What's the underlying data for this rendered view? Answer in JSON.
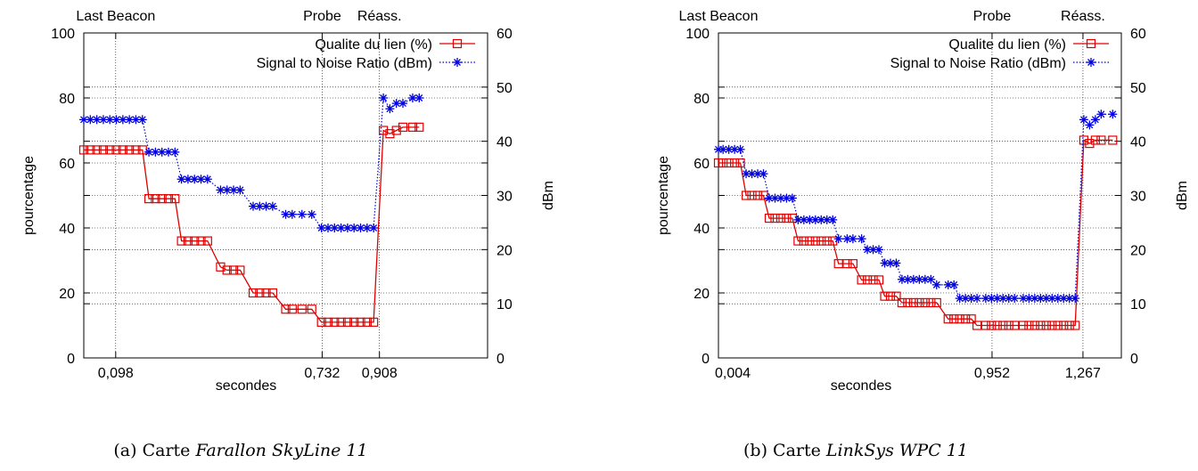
{
  "chart_data": [
    {
      "type": "line",
      "caption_prefix": "(a) Carte ",
      "caption_name": "Farallon SkyLine 11",
      "xlabel": "secondes",
      "ylabel": "pourcentage",
      "y2label": "dBm",
      "ylim": [
        0,
        100
      ],
      "y2lim": [
        0,
        60
      ],
      "xlim": [
        0,
        1.24
      ],
      "yticks": [
        "0",
        "20",
        "40",
        "60",
        "80",
        "100"
      ],
      "y2ticks": [
        "0",
        "10",
        "20",
        "30",
        "40",
        "50",
        "60"
      ],
      "xticks": [
        {
          "x": 0.098,
          "label": "0,098"
        },
        {
          "x": 0.732,
          "label": "0,732"
        },
        {
          "x": 0.908,
          "label": "0,908"
        }
      ],
      "events": [
        {
          "x": 0.098,
          "label": "Last Beacon"
        },
        {
          "x": 0.732,
          "label": "Probe"
        },
        {
          "x": 0.908,
          "label": "Réass."
        }
      ],
      "grid": true,
      "legend_position": "top-right",
      "series": [
        {
          "name": "Qualite du lien (%)",
          "axis": "left",
          "color": "#e00000",
          "marker": "square",
          "line": "solid",
          "x": [
            0.0,
            0.02,
            0.04,
            0.06,
            0.08,
            0.1,
            0.12,
            0.14,
            0.16,
            0.18,
            0.2,
            0.22,
            0.24,
            0.26,
            0.28,
            0.3,
            0.32,
            0.34,
            0.36,
            0.38,
            0.42,
            0.44,
            0.46,
            0.48,
            0.52,
            0.54,
            0.56,
            0.58,
            0.62,
            0.64,
            0.67,
            0.7,
            0.73,
            0.75,
            0.77,
            0.79,
            0.81,
            0.83,
            0.85,
            0.87,
            0.89,
            0.92,
            0.94,
            0.96,
            0.98,
            1.01,
            1.03
          ],
          "values": [
            64,
            64,
            64,
            64,
            64,
            64,
            64,
            64,
            64,
            64,
            49,
            49,
            49,
            49,
            49,
            36,
            36,
            36,
            36,
            36,
            28,
            27,
            27,
            27,
            20,
            20,
            20,
            20,
            15,
            15,
            15,
            15,
            11,
            11,
            11,
            11,
            11,
            11,
            11,
            11,
            11,
            70,
            69,
            70,
            71,
            71,
            71
          ]
        },
        {
          "name": "Signal to Noise Ratio (dBm)",
          "axis": "right",
          "color": "#0000e0",
          "marker": "star",
          "line": "dotted",
          "x": [
            0.0,
            0.02,
            0.04,
            0.06,
            0.08,
            0.1,
            0.12,
            0.14,
            0.16,
            0.18,
            0.2,
            0.22,
            0.24,
            0.26,
            0.28,
            0.3,
            0.32,
            0.34,
            0.36,
            0.38,
            0.42,
            0.44,
            0.46,
            0.48,
            0.52,
            0.54,
            0.56,
            0.58,
            0.62,
            0.64,
            0.67,
            0.7,
            0.73,
            0.75,
            0.77,
            0.79,
            0.81,
            0.83,
            0.85,
            0.87,
            0.89,
            0.92,
            0.94,
            0.96,
            0.98,
            1.01,
            1.03
          ],
          "values": [
            44,
            44,
            44,
            44,
            44,
            44,
            44,
            44,
            44,
            44,
            38,
            38,
            38,
            38,
            38,
            33,
            33,
            33,
            33,
            33,
            31,
            31,
            31,
            31,
            28,
            28,
            28,
            28,
            26.5,
            26.5,
            26.5,
            26.5,
            24,
            24,
            24,
            24,
            24,
            24,
            24,
            24,
            24,
            48,
            46,
            47,
            47,
            48,
            48
          ]
        }
      ]
    },
    {
      "type": "line",
      "caption_prefix": "(b) Carte ",
      "caption_name": "LinkSys WPC 11",
      "xlabel": "secondes",
      "ylabel": "pourcentage",
      "y2label": "dBm",
      "ylim": [
        0,
        100
      ],
      "y2lim": [
        0,
        60
      ],
      "xlim": [
        0.004,
        1.4
      ],
      "yticks": [
        "0",
        "20",
        "40",
        "60",
        "80",
        "100"
      ],
      "y2ticks": [
        "0",
        "10",
        "20",
        "30",
        "40",
        "50",
        "60"
      ],
      "xticks": [
        {
          "x": 0.004,
          "label": "0,004"
        },
        {
          "x": 0.952,
          "label": "0,952"
        },
        {
          "x": 1.267,
          "label": "1,267"
        }
      ],
      "events": [
        {
          "x": 0.004,
          "label": "Last Beacon"
        },
        {
          "x": 0.952,
          "label": "Probe"
        },
        {
          "x": 1.267,
          "label": "Réass."
        }
      ],
      "grid": true,
      "legend_position": "top-right",
      "series": [
        {
          "name": "Qualite du lien (%)",
          "axis": "left",
          "color": "#e00000",
          "marker": "square",
          "line": "solid",
          "x": [
            0.004,
            0.02,
            0.04,
            0.06,
            0.08,
            0.1,
            0.12,
            0.14,
            0.16,
            0.18,
            0.2,
            0.22,
            0.24,
            0.26,
            0.28,
            0.3,
            0.32,
            0.34,
            0.36,
            0.38,
            0.4,
            0.42,
            0.45,
            0.47,
            0.5,
            0.52,
            0.54,
            0.56,
            0.58,
            0.6,
            0.62,
            0.64,
            0.66,
            0.68,
            0.7,
            0.72,
            0.74,
            0.76,
            0.8,
            0.82,
            0.84,
            0.86,
            0.88,
            0.9,
            0.93,
            0.95,
            0.97,
            0.99,
            1.01,
            1.03,
            1.06,
            1.08,
            1.1,
            1.12,
            1.14,
            1.16,
            1.18,
            1.2,
            1.22,
            1.24,
            1.27,
            1.29,
            1.31,
            1.33,
            1.37
          ],
          "values": [
            60,
            60,
            60,
            60,
            60,
            50,
            50,
            50,
            50,
            43,
            43,
            43,
            43,
            43,
            36,
            36,
            36,
            36,
            36,
            36,
            36,
            29,
            29,
            29,
            24,
            24,
            24,
            24,
            19,
            19,
            19,
            17,
            17,
            17,
            17,
            17,
            17,
            17,
            12,
            12,
            12,
            12,
            12,
            10,
            10,
            10,
            10,
            10,
            10,
            10,
            10,
            10,
            10,
            10,
            10,
            10,
            10,
            10,
            10,
            10,
            67,
            66,
            67,
            67,
            67
          ]
        },
        {
          "name": "Signal to Noise Ratio (dBm)",
          "axis": "right",
          "color": "#0000e0",
          "marker": "star",
          "line": "dotted",
          "x": [
            0.004,
            0.02,
            0.04,
            0.06,
            0.08,
            0.1,
            0.12,
            0.14,
            0.16,
            0.18,
            0.2,
            0.22,
            0.24,
            0.26,
            0.28,
            0.3,
            0.32,
            0.34,
            0.36,
            0.38,
            0.4,
            0.42,
            0.45,
            0.47,
            0.5,
            0.52,
            0.54,
            0.56,
            0.58,
            0.6,
            0.62,
            0.64,
            0.66,
            0.68,
            0.7,
            0.72,
            0.74,
            0.76,
            0.8,
            0.82,
            0.84,
            0.86,
            0.88,
            0.9,
            0.93,
            0.95,
            0.97,
            0.99,
            1.01,
            1.03,
            1.06,
            1.08,
            1.1,
            1.12,
            1.14,
            1.16,
            1.18,
            1.2,
            1.22,
            1.24,
            1.27,
            1.29,
            1.31,
            1.33,
            1.37
          ],
          "values": [
            38.5,
            38.5,
            38.5,
            38.5,
            38.5,
            34,
            34,
            34,
            34,
            29.5,
            29.5,
            29.5,
            29.5,
            29.5,
            25.5,
            25.5,
            25.5,
            25.5,
            25.5,
            25.5,
            25.5,
            22,
            22,
            22,
            22,
            20,
            20,
            20,
            17.5,
            17.5,
            17.5,
            14.5,
            14.5,
            14.5,
            14.5,
            14.5,
            14.5,
            13.5,
            13.5,
            13.5,
            11,
            11,
            11,
            11,
            11,
            11,
            11,
            11,
            11,
            11,
            11,
            11,
            11,
            11,
            11,
            11,
            11,
            11,
            11,
            11,
            44,
            43,
            44,
            45,
            45
          ]
        }
      ]
    }
  ]
}
